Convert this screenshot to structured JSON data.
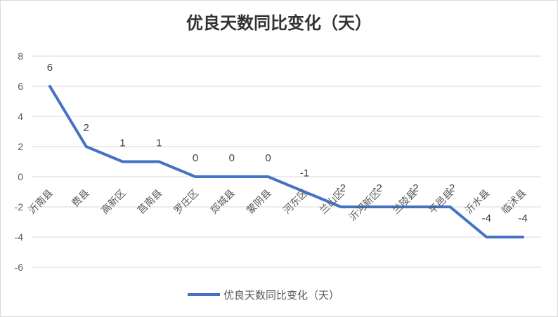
{
  "chart_data": {
    "type": "line",
    "title": "优良天数同比变化（天）",
    "categories": [
      "沂南县",
      "费县",
      "高新区",
      "莒南县",
      "罗庄区",
      "郯城县",
      "蒙阴县",
      "河东区",
      "兰山区",
      "沂河新区",
      "兰陵县",
      "平邑县",
      "沂水县",
      "临沭县"
    ],
    "series": [
      {
        "name": "优良天数同比变化（天）",
        "values": [
          6,
          2,
          1,
          1,
          0,
          0,
          0,
          -1,
          -2,
          -2,
          -2,
          -2,
          -4,
          -4
        ],
        "color": "#4472c4"
      }
    ],
    "ylim": [
      -6,
      8
    ],
    "yticks": [
      8,
      6,
      4,
      2,
      0,
      -2,
      -4,
      -6
    ],
    "grid": true,
    "legend_position": "bottom",
    "xlabel": "",
    "ylabel": ""
  }
}
